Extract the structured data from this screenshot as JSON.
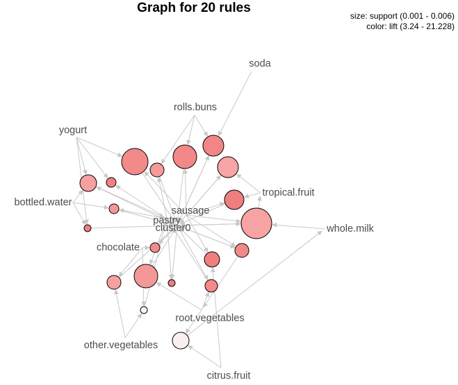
{
  "title": "Graph for 20 rules",
  "legend": {
    "size": "size: support (0.001 - 0.006)",
    "color": "color: lift (3.24 - 21.228)"
  },
  "items": [
    {
      "name": "soda",
      "label": "soda"
    },
    {
      "name": "rolls-buns",
      "label": "rolls.buns"
    },
    {
      "name": "yogurt",
      "label": "yogurt"
    },
    {
      "name": "tropical-fruit",
      "label": "tropical.fruit"
    },
    {
      "name": "bottled-water",
      "label": "bottled.water"
    },
    {
      "name": "sausage",
      "label": "sausage"
    },
    {
      "name": "pastry",
      "label": "pastry"
    },
    {
      "name": "cluster0",
      "label": "cluster0"
    },
    {
      "name": "whole-milk",
      "label": "whole.milk"
    },
    {
      "name": "chocolate",
      "label": "chocolate"
    },
    {
      "name": "root-vegetables",
      "label": "root.vegetables"
    },
    {
      "name": "other-vegetables",
      "label": "other.vegetables"
    },
    {
      "name": "citrus-fruit",
      "label": "citrus.fruit"
    }
  ],
  "colors": {
    "edge": "#c8c8c8",
    "node_stroke": "#000000",
    "lift_high": "#f08080",
    "lift_low": "#fbeeee"
  }
}
